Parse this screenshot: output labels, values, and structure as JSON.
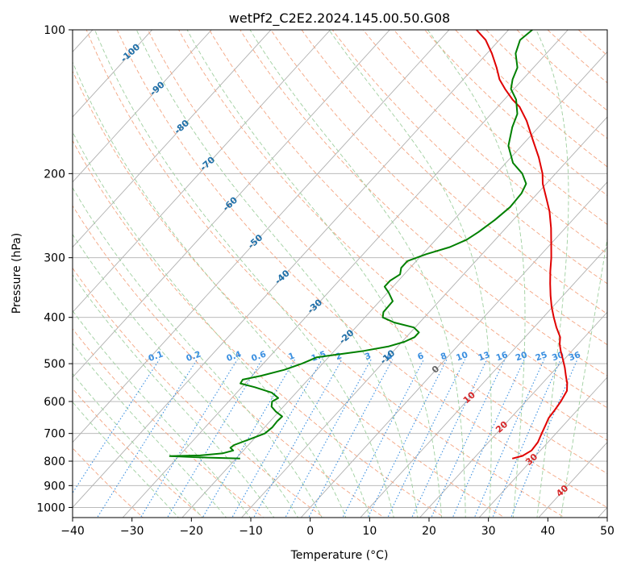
{
  "chart_data": {
    "type": "line",
    "title": "wetPf2_C2E2.2024.145.00.50.G08",
    "xlabel": "Temperature (°C)",
    "ylabel": "Pressure (hPa)",
    "xlim": [
      -40,
      50
    ],
    "ylim": [
      1050,
      100
    ],
    "y_scale": "log",
    "x_ticks": [
      -40,
      -30,
      -20,
      -10,
      0,
      10,
      20,
      30,
      40,
      50
    ],
    "y_ticks": [
      100,
      200,
      300,
      400,
      500,
      600,
      700,
      800,
      900,
      1000
    ],
    "grid": true,
    "skew": "skew-T log-p",
    "colors": {
      "temperature": "#e00000",
      "dewpoint": "#008000",
      "dry_adiabat": "#f4a582",
      "moist_adiabat": "#9fcf9f",
      "mixing_ratio": "#3a8fe0",
      "isotherm_label": "#1f6fa8",
      "warm_label": "#d62728",
      "grid": "#b0b0b0"
    },
    "isotherm_labels": [
      {
        "value": -100,
        "p": 112
      },
      {
        "value": -90,
        "p": 133
      },
      {
        "value": -80,
        "p": 160
      },
      {
        "value": -70,
        "p": 191
      },
      {
        "value": -60,
        "p": 232
      },
      {
        "value": -50,
        "p": 278
      },
      {
        "value": -40,
        "p": 330
      },
      {
        "value": -30,
        "p": 380
      },
      {
        "value": -20,
        "p": 440
      },
      {
        "value": -10,
        "p": 485
      },
      {
        "value": 0,
        "p": 515
      },
      {
        "value": 10,
        "p": 590
      },
      {
        "value": 20,
        "p": 680
      },
      {
        "value": 30,
        "p": 795
      },
      {
        "value": 40,
        "p": 925
      }
    ],
    "mixing_ratio_labels": [
      {
        "value": 0.1,
        "t": -22
      },
      {
        "value": 0.2,
        "t": -16
      },
      {
        "value": 0.4,
        "t": -9
      },
      {
        "value": 0.6,
        "t": -5
      },
      {
        "value": 1,
        "t": 0
      },
      {
        "value": 1.5,
        "t": 5
      },
      {
        "value": 2,
        "t": 9
      },
      {
        "value": 3,
        "t": 14
      },
      {
        "value": 4,
        "t": 17
      },
      {
        "value": 6,
        "t": 22
      },
      {
        "value": 8,
        "t": 25
      },
      {
        "value": 10,
        "t": 29
      },
      {
        "value": 13,
        "t": 33
      },
      {
        "value": 16,
        "t": 36
      },
      {
        "value": 20,
        "t": 40
      },
      {
        "value": 25,
        "t": 43
      },
      {
        "value": 30,
        "t": 46
      },
      {
        "value": 36,
        "t": 49
      }
    ],
    "series": [
      {
        "name": "",
        "role": "temperature",
        "points": [
          {
            "p": 790,
            "t": 26.5
          },
          {
            "p": 780,
            "t": 27.8
          },
          {
            "p": 760,
            "t": 28.5
          },
          {
            "p": 730,
            "t": 28.3
          },
          {
            "p": 700,
            "t": 27.6
          },
          {
            "p": 670,
            "t": 26.9
          },
          {
            "p": 650,
            "t": 26.4
          },
          {
            "p": 625,
            "t": 26.2
          },
          {
            "p": 600,
            "t": 25.9
          },
          {
            "p": 570,
            "t": 25.3
          },
          {
            "p": 550,
            "t": 24.2
          },
          {
            "p": 530,
            "t": 22.8
          },
          {
            "p": 510,
            "t": 21.4
          },
          {
            "p": 490,
            "t": 19.8
          },
          {
            "p": 470,
            "t": 18.1
          },
          {
            "p": 455,
            "t": 16.9
          },
          {
            "p": 440,
            "t": 15.9
          },
          {
            "p": 420,
            "t": 13.8
          },
          {
            "p": 400,
            "t": 11.8
          },
          {
            "p": 380,
            "t": 9.8
          },
          {
            "p": 360,
            "t": 7.9
          },
          {
            "p": 340,
            "t": 6.0
          },
          {
            "p": 320,
            "t": 4.1
          },
          {
            "p": 300,
            "t": 2.2
          },
          {
            "p": 280,
            "t": 0.0
          },
          {
            "p": 260,
            "t": -2.4
          },
          {
            "p": 240,
            "t": -5.2
          },
          {
            "p": 225,
            "t": -7.8
          },
          {
            "p": 210,
            "t": -10.6
          },
          {
            "p": 200,
            "t": -12.2
          },
          {
            "p": 185,
            "t": -15.3
          },
          {
            "p": 170,
            "t": -19.0
          },
          {
            "p": 155,
            "t": -23.0
          },
          {
            "p": 145,
            "t": -26.3
          },
          {
            "p": 140,
            "t": -28.6
          },
          {
            "p": 133,
            "t": -31.5
          },
          {
            "p": 127,
            "t": -33.9
          },
          {
            "p": 120,
            "t": -36.2
          },
          {
            "p": 112,
            "t": -39.2
          },
          {
            "p": 105,
            "t": -42.3
          },
          {
            "p": 100,
            "t": -45.4
          }
        ]
      },
      {
        "name": "",
        "role": "dewpoint",
        "points": [
          {
            "p": 790,
            "t": -19.3
          },
          {
            "p": 785,
            "t": -26.5
          },
          {
            "p": 781,
            "t": -31.5
          },
          {
            "p": 778,
            "t": -26.5
          },
          {
            "p": 770,
            "t": -23.0
          },
          {
            "p": 760,
            "t": -21.7
          },
          {
            "p": 750,
            "t": -22.6
          },
          {
            "p": 740,
            "t": -22.4
          },
          {
            "p": 720,
            "t": -20.7
          },
          {
            "p": 700,
            "t": -19.0
          },
          {
            "p": 680,
            "t": -18.7
          },
          {
            "p": 660,
            "t": -18.8
          },
          {
            "p": 645,
            "t": -18.7
          },
          {
            "p": 630,
            "t": -20.5
          },
          {
            "p": 615,
            "t": -22.0
          },
          {
            "p": 600,
            "t": -22.7
          },
          {
            "p": 590,
            "t": -22.2
          },
          {
            "p": 575,
            "t": -24.1
          },
          {
            "p": 560,
            "t": -27.8
          },
          {
            "p": 550,
            "t": -30.8
          },
          {
            "p": 540,
            "t": -31.0
          },
          {
            "p": 530,
            "t": -28.5
          },
          {
            "p": 515,
            "t": -25.5
          },
          {
            "p": 500,
            "t": -23.5
          },
          {
            "p": 485,
            "t": -22.0
          },
          {
            "p": 470,
            "t": -15.0
          },
          {
            "p": 460,
            "t": -11.5
          },
          {
            "p": 450,
            "t": -9.6
          },
          {
            "p": 440,
            "t": -8.6
          },
          {
            "p": 430,
            "t": -8.6
          },
          {
            "p": 420,
            "t": -10.2
          },
          {
            "p": 410,
            "t": -14.3
          },
          {
            "p": 400,
            "t": -17.0
          },
          {
            "p": 390,
            "t": -17.7
          },
          {
            "p": 370,
            "t": -17.8
          },
          {
            "p": 355,
            "t": -19.8
          },
          {
            "p": 345,
            "t": -21.4
          },
          {
            "p": 335,
            "t": -21.4
          },
          {
            "p": 325,
            "t": -20.7
          },
          {
            "p": 315,
            "t": -21.5
          },
          {
            "p": 305,
            "t": -21.5
          },
          {
            "p": 295,
            "t": -19.4
          },
          {
            "p": 285,
            "t": -16.5
          },
          {
            "p": 275,
            "t": -14.8
          },
          {
            "p": 265,
            "t": -14.0
          },
          {
            "p": 250,
            "t": -13.1
          },
          {
            "p": 235,
            "t": -12.5
          },
          {
            "p": 220,
            "t": -12.7
          },
          {
            "p": 210,
            "t": -13.4
          },
          {
            "p": 200,
            "t": -15.6
          },
          {
            "p": 190,
            "t": -18.8
          },
          {
            "p": 175,
            "t": -22.2
          },
          {
            "p": 160,
            "t": -24.4
          },
          {
            "p": 150,
            "t": -25.6
          },
          {
            "p": 140,
            "t": -28.0
          },
          {
            "p": 133,
            "t": -30.5
          },
          {
            "p": 127,
            "t": -31.7
          },
          {
            "p": 120,
            "t": -32.7
          },
          {
            "p": 112,
            "t": -35.2
          },
          {
            "p": 105,
            "t": -36.5
          },
          {
            "p": 100,
            "t": -36.0
          }
        ]
      }
    ]
  }
}
